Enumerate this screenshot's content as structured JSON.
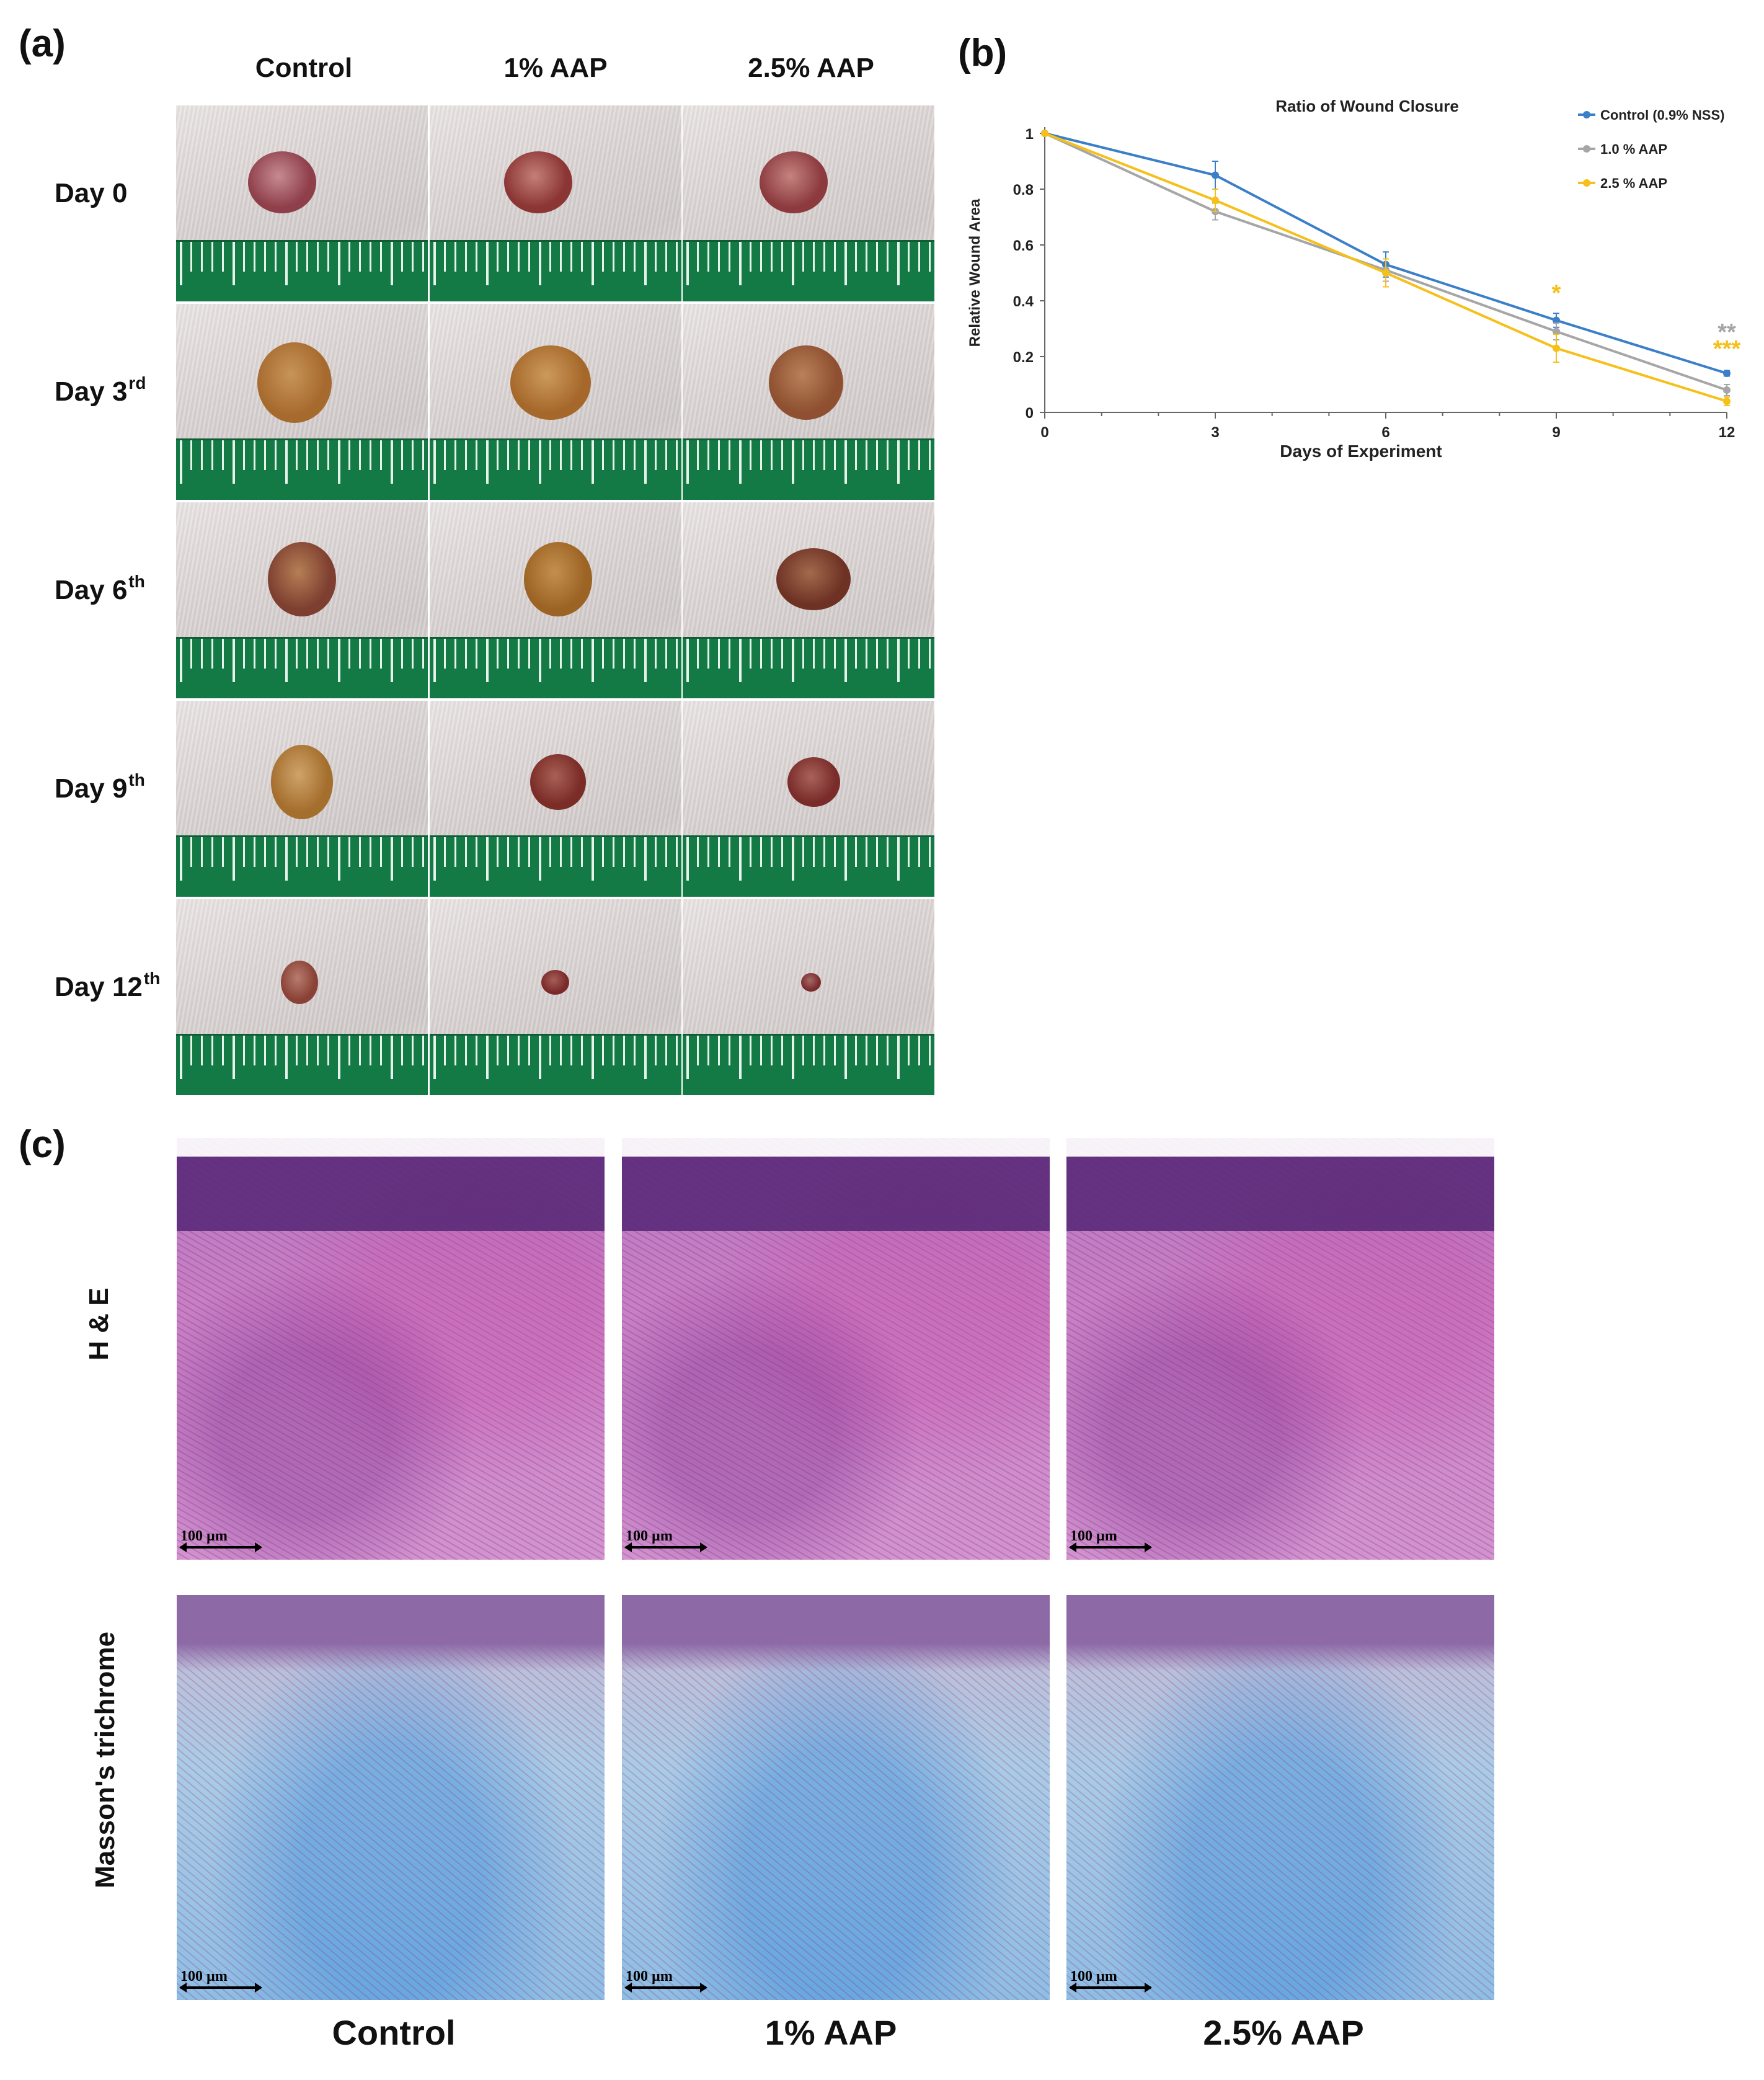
{
  "panel_a": {
    "letter": "(a)",
    "columns": [
      "Control",
      "1% AAP",
      "2.5% AAP"
    ],
    "rows": [
      {
        "label": "Day 0",
        "sup": ""
      },
      {
        "label": "Day 3",
        "sup": "rd"
      },
      {
        "label": "Day 6",
        "sup": "th"
      },
      {
        "label": "Day 9",
        "sup": "th"
      },
      {
        "label": "Day 12",
        "sup": "th"
      }
    ]
  },
  "panel_b": {
    "letter": "(b)"
  },
  "chart_data": {
    "type": "line",
    "title": "Ratio of Wound Closure",
    "xlabel": "Days of Experiment",
    "ylabel": "Relative Wound Area",
    "x": [
      0,
      3,
      6,
      9,
      12
    ],
    "xlim": [
      0,
      12
    ],
    "ylim": [
      0,
      1
    ],
    "x_ticks": [
      0,
      3,
      6,
      9,
      12
    ],
    "y_ticks": [
      0,
      0.2,
      0.4,
      0.6,
      0.8,
      1
    ],
    "y_tick_labels": [
      "0",
      "0.2",
      "0.4",
      "0.6",
      "0.8",
      "1"
    ],
    "grid": false,
    "legend_position": "top-right",
    "series": [
      {
        "name": "Control (0.9% NSS)",
        "color": "#3a7fc8",
        "values": [
          1,
          0.85,
          0.53,
          0.33,
          0.14
        ],
        "errors": [
          0,
          0.05,
          0.045,
          0.025,
          0.01
        ]
      },
      {
        "name": "1.0 % AAP",
        "color": "#a6a6a6",
        "values": [
          1,
          0.72,
          0.51,
          0.29,
          0.08
        ],
        "errors": [
          0,
          0.03,
          0.04,
          0.03,
          0.02
        ]
      },
      {
        "name": "2.5 % AAP",
        "color": "#f5c01a",
        "values": [
          1,
          0.76,
          0.5,
          0.23,
          0.04
        ],
        "errors": [
          0,
          0.04,
          0.05,
          0.05,
          0.015
        ]
      }
    ],
    "annotations": [
      {
        "text": "*",
        "x": 9,
        "y": 0.4,
        "color": "#f5c01a"
      },
      {
        "text": "**",
        "x": 12,
        "y": 0.26,
        "color": "#a6a6a6"
      },
      {
        "text": "***",
        "x": 12,
        "y": 0.2,
        "color": "#f5c01a"
      }
    ]
  },
  "panel_c": {
    "letter": "(c)",
    "row_labels": [
      "H & E",
      "Masson's trichrome"
    ],
    "col_labels": [
      "Control",
      "1% AAP",
      "2.5% AAP"
    ],
    "scale_label": "100 µm"
  }
}
